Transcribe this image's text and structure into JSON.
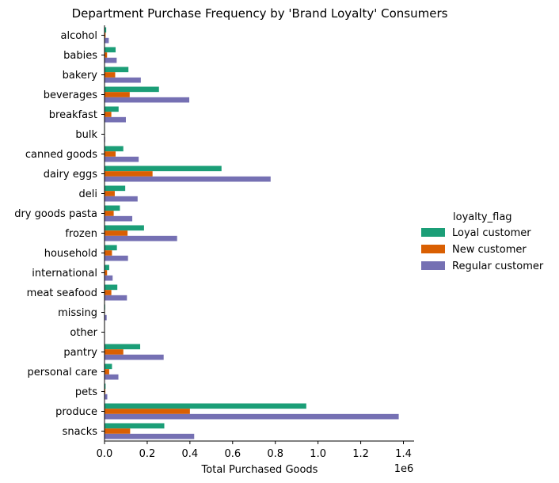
{
  "chart_data": {
    "type": "bar",
    "orientation": "horizontal",
    "title": "Department Purchase Frequency by 'Brand Loyalty' Consumers",
    "xlabel": "Total Purchased Goods",
    "ylabel": "",
    "x_scale_label": "1e6",
    "xlim": [
      0,
      1.45
    ],
    "x_ticks": [
      "0.0",
      "0.2",
      "0.4",
      "0.6",
      "0.8",
      "1.0",
      "1.2",
      "1.4"
    ],
    "legend": {
      "title": "loyalty_flag",
      "placement": "right"
    },
    "categories": [
      "alcohol",
      "babies",
      "bakery",
      "beverages",
      "breakfast",
      "bulk",
      "canned goods",
      "dairy eggs",
      "deli",
      "dry goods pasta",
      "frozen",
      "household",
      "international",
      "meat seafood",
      "missing",
      "other",
      "pantry",
      "personal care",
      "pets",
      "produce",
      "snacks"
    ],
    "series": [
      {
        "name": "Loyal customer",
        "color": "#1b9e77",
        "values": [
          0.008,
          0.052,
          0.112,
          0.255,
          0.066,
          0.002,
          0.088,
          0.548,
          0.097,
          0.072,
          0.185,
          0.058,
          0.022,
          0.06,
          0.003,
          0.001,
          0.167,
          0.035,
          0.005,
          0.945,
          0.28
        ]
      },
      {
        "name": "New customer",
        "color": "#d95f02",
        "values": [
          0.005,
          0.012,
          0.05,
          0.118,
          0.032,
          0.001,
          0.052,
          0.225,
          0.048,
          0.043,
          0.108,
          0.035,
          0.012,
          0.032,
          0.002,
          0.001,
          0.088,
          0.022,
          0.004,
          0.4,
          0.12
        ]
      },
      {
        "name": "Regular customer",
        "color": "#7570b3",
        "values": [
          0.02,
          0.057,
          0.17,
          0.397,
          0.1,
          0.003,
          0.16,
          0.778,
          0.155,
          0.13,
          0.34,
          0.11,
          0.038,
          0.105,
          0.01,
          0.002,
          0.277,
          0.065,
          0.013,
          1.378,
          0.42
        ]
      }
    ]
  }
}
